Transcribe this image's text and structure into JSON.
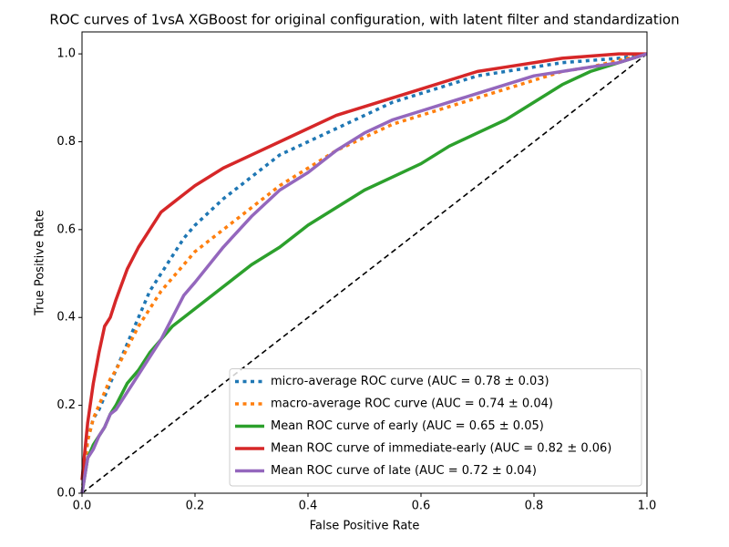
{
  "chart_data": {
    "type": "line",
    "title": "ROC curves of 1vsA XGBoost for original configuration, with latent filter and standardization",
    "xlabel": "False Positive Rate",
    "ylabel": "True Positive Rate",
    "xlim": [
      0,
      1
    ],
    "ylim": [
      0,
      1.05
    ],
    "xticks": [
      {
        "value": 0,
        "label": "0.0"
      },
      0.2,
      0.4,
      0.6,
      0.8,
      {
        "value": 1,
        "label": "1.0"
      }
    ],
    "yticks": [
      {
        "value": 0,
        "label": "0.0"
      },
      0.2,
      0.4,
      0.6,
      0.8,
      {
        "value": 1,
        "label": "1.0"
      }
    ],
    "legend": "lower right",
    "reference_line": {
      "x": [
        0,
        1
      ],
      "y": [
        0,
        1
      ],
      "color": "#000000",
      "style": "dashed"
    },
    "x": [
      0,
      0.01,
      0.02,
      0.03,
      0.04,
      0.05,
      0.06,
      0.08,
      0.1,
      0.12,
      0.14,
      0.16,
      0.18,
      0.2,
      0.25,
      0.3,
      0.35,
      0.4,
      0.45,
      0.5,
      0.55,
      0.6,
      0.65,
      0.7,
      0.75,
      0.8,
      0.85,
      0.9,
      0.95,
      1.0
    ],
    "series": [
      {
        "name": "micro-average ROC curve (AUC = 0.78 ± 0.03)",
        "color": "#1f77b4",
        "style": "dotted",
        "values": [
          0,
          0.12,
          0.17,
          0.19,
          0.22,
          0.25,
          0.28,
          0.34,
          0.4,
          0.46,
          0.5,
          0.54,
          0.58,
          0.61,
          0.67,
          0.72,
          0.77,
          0.8,
          0.83,
          0.86,
          0.89,
          0.91,
          0.93,
          0.95,
          0.96,
          0.97,
          0.98,
          0.985,
          0.99,
          1.0
        ]
      },
      {
        "name": "macro-average ROC curve (AUC = 0.74 ± 0.04)",
        "color": "#ff7f0e",
        "style": "dotted",
        "values": [
          0,
          0.12,
          0.17,
          0.2,
          0.23,
          0.26,
          0.28,
          0.33,
          0.38,
          0.42,
          0.46,
          0.49,
          0.52,
          0.55,
          0.6,
          0.65,
          0.7,
          0.74,
          0.78,
          0.81,
          0.84,
          0.86,
          0.88,
          0.9,
          0.92,
          0.94,
          0.96,
          0.97,
          0.985,
          1.0
        ]
      },
      {
        "name": "Mean ROC curve of early (AUC = 0.65 ± 0.05)",
        "color": "#2ca02c",
        "style": "solid",
        "values": [
          0,
          0.08,
          0.11,
          0.13,
          0.15,
          0.18,
          0.2,
          0.25,
          0.28,
          0.32,
          0.35,
          0.38,
          0.4,
          0.42,
          0.47,
          0.52,
          0.56,
          0.61,
          0.65,
          0.69,
          0.72,
          0.75,
          0.79,
          0.82,
          0.85,
          0.89,
          0.93,
          0.96,
          0.98,
          1.0
        ]
      },
      {
        "name": "Mean ROC curve of immediate-early (AUC = 0.82 ± 0.06)",
        "color": "#d62728",
        "style": "solid",
        "values": [
          0.03,
          0.16,
          0.25,
          0.32,
          0.38,
          0.4,
          0.44,
          0.51,
          0.56,
          0.6,
          0.64,
          0.66,
          0.68,
          0.7,
          0.74,
          0.77,
          0.8,
          0.83,
          0.86,
          0.88,
          0.9,
          0.92,
          0.94,
          0.96,
          0.97,
          0.98,
          0.99,
          0.995,
          1.0,
          1.0
        ]
      },
      {
        "name": "Mean ROC curve of late (AUC = 0.72 ± 0.04)",
        "color": "#9467bd",
        "style": "solid",
        "values": [
          0,
          0.08,
          0.1,
          0.13,
          0.15,
          0.18,
          0.19,
          0.23,
          0.27,
          0.31,
          0.35,
          0.4,
          0.45,
          0.48,
          0.56,
          0.63,
          0.69,
          0.73,
          0.78,
          0.82,
          0.85,
          0.87,
          0.89,
          0.91,
          0.93,
          0.95,
          0.96,
          0.97,
          0.98,
          1.0
        ]
      }
    ]
  }
}
